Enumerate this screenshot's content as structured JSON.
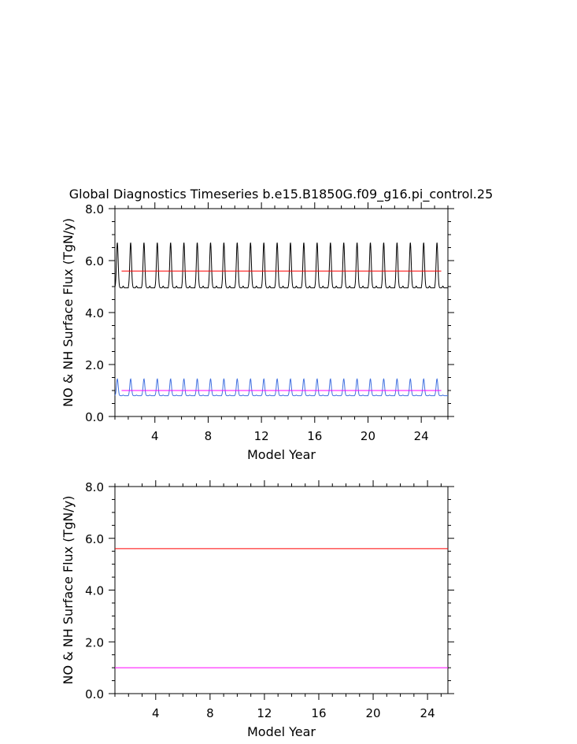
{
  "figure": {
    "title": "Global Diagnostics Timeseries b.e15.B1850G.f09_g16.pi_control.25"
  },
  "chart_data": [
    {
      "type": "line",
      "xlabel": "Model Year",
      "ylabel": "NO & NH Surface Flux (TgN/y)",
      "xlim": [
        1,
        26
      ],
      "ylim": [
        0,
        8
      ],
      "xticks": [
        4,
        8,
        12,
        16,
        20,
        24
      ],
      "yticks": [
        0,
        2,
        4,
        6,
        8
      ],
      "ytick_labels": [
        "0.0",
        "2.0",
        "4.0",
        "6.0",
        "8.0"
      ],
      "series": [
        {
          "color": "#000000",
          "kind": "seasonal",
          "start_year": 1,
          "end_year": 26,
          "min": 4.95,
          "max": 6.7,
          "annual_mean": 5.6
        },
        {
          "color": "#ff0000",
          "kind": "constant",
          "start_year": 1.5,
          "end_year": 25.5,
          "value": 5.6
        },
        {
          "color": "#4070e0",
          "kind": "seasonal",
          "start_year": 1,
          "end_year": 26,
          "min": 0.8,
          "max": 1.45,
          "annual_mean": 1.05
        },
        {
          "color": "#ff00ff",
          "kind": "constant",
          "start_year": 1.5,
          "end_year": 25.5,
          "value": 1.0
        }
      ]
    },
    {
      "type": "line",
      "xlabel": "Model Year",
      "ylabel": "NO & NH Surface Flux (TgN/y)",
      "xlim": [
        1,
        25.5
      ],
      "ylim": [
        0,
        8
      ],
      "xticks": [
        4,
        8,
        12,
        16,
        20,
        24
      ],
      "yticks": [
        0,
        2,
        4,
        6,
        8
      ],
      "ytick_labels": [
        "0.0",
        "2.0",
        "4.0",
        "6.0",
        "8.0"
      ],
      "series": [
        {
          "color": "#ff0000",
          "kind": "constant",
          "start_year": 1,
          "end_year": 25.5,
          "value": 5.6
        },
        {
          "color": "#ff00ff",
          "kind": "constant",
          "start_year": 1,
          "end_year": 25.5,
          "value": 1.0
        }
      ]
    }
  ]
}
